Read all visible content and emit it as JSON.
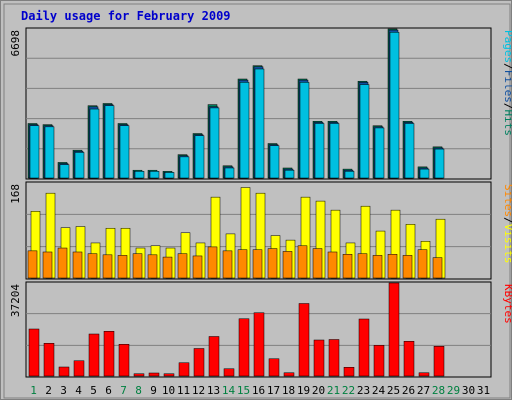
{
  "title": "Daily usage for February 2009",
  "colors": {
    "background": "#c0c0c0",
    "title": "#0000cc",
    "pages": "#00c0e0",
    "files": "#1050a0",
    "hits": "#008060",
    "sites": "#ff8800",
    "visits": "#ffff00",
    "kbytes": "#ff0000",
    "weekend_day": "#008040",
    "weekday": "#000000"
  },
  "panels": [
    {
      "id": "hits",
      "ymax_label": "6698",
      "legend": [
        "Pages",
        "/",
        "Files",
        "/",
        "Hits"
      ]
    },
    {
      "id": "visits",
      "ymax_label": "168",
      "legend": [
        "Sites",
        "/",
        "Visits"
      ]
    },
    {
      "id": "kbytes",
      "ymax_label": "37204",
      "legend": [
        "KBytes"
      ]
    }
  ],
  "chart_data": {
    "type": "bar",
    "title": "Daily usage for February 2009",
    "categories": [
      "1",
      "2",
      "3",
      "4",
      "5",
      "6",
      "7",
      "8",
      "9",
      "10",
      "11",
      "12",
      "13",
      "14",
      "15",
      "16",
      "17",
      "18",
      "19",
      "20",
      "21",
      "22",
      "23",
      "24",
      "25",
      "26",
      "27",
      "28",
      "29",
      "30",
      "31"
    ],
    "weekend_days": [
      "1",
      "7",
      "8",
      "14",
      "15",
      "21",
      "22",
      "28",
      "29"
    ],
    "panels": [
      {
        "ymax": 6698,
        "series": [
          {
            "name": "Hits",
            "values": [
              2450,
              2400,
              700,
              1250,
              3250,
              3350,
              2450,
              350,
              350,
              300,
              1050,
              2000,
              3300,
              550,
              4450,
              5050,
              1550,
              450,
              4450,
              2550,
              2550,
              400,
              4350,
              2350,
              6698,
              2550,
              500,
              1400,
              0,
              0,
              0
            ]
          },
          {
            "name": "Files",
            "values": [
              2400,
              2350,
              650,
              1200,
              3200,
              3300,
              2400,
              300,
              300,
              250,
              1000,
              1950,
              3200,
              500,
              4400,
              5000,
              1500,
              400,
              4400,
              2500,
              2500,
              350,
              4300,
              2300,
              6650,
              2500,
              450,
              1350,
              0,
              0,
              0
            ]
          },
          {
            "name": "Pages",
            "values": [
              2350,
              2300,
              600,
              1150,
              3100,
              3250,
              2350,
              300,
              300,
              250,
              950,
              1900,
              3150,
              450,
              4300,
              4900,
              1450,
              350,
              4300,
              2450,
              2450,
              300,
              4200,
              2250,
              6550,
              2450,
              400,
              1300,
              0,
              0,
              0
            ]
          }
        ]
      },
      {
        "ymax": 168,
        "series": [
          {
            "name": "Visits",
            "values": [
              118,
              150,
              89,
              91,
              62,
              88,
              88,
              53,
              57,
              53,
              80,
              62,
              143,
              78,
              160,
              150,
              75,
              67,
              143,
              136,
              120,
              62,
              127,
              83,
              120,
              95,
              65,
              104,
              0,
              0,
              0
            ]
          },
          {
            "name": "Sites",
            "values": [
              48,
              46,
              53,
              46,
              43,
              41,
              40,
              43,
              41,
              37,
              43,
              39,
              55,
              48,
              50,
              50,
              52,
              47,
              57,
              52,
              46,
              42,
              43,
              40,
              42,
              40,
              50,
              36,
              0,
              0,
              0
            ]
          }
        ]
      },
      {
        "ymax": 37204,
        "series": [
          {
            "name": "KBytes",
            "values": [
              18800,
              13100,
              3600,
              6100,
              16800,
              17900,
              12700,
              900,
              1200,
              900,
              5300,
              11000,
              15800,
              2900,
              22900,
              25300,
              6900,
              1300,
              29000,
              14400,
              14600,
              3500,
              22800,
              12300,
              37204,
              13900,
              1300,
              11900,
              0,
              0,
              0
            ]
          }
        ]
      }
    ]
  }
}
